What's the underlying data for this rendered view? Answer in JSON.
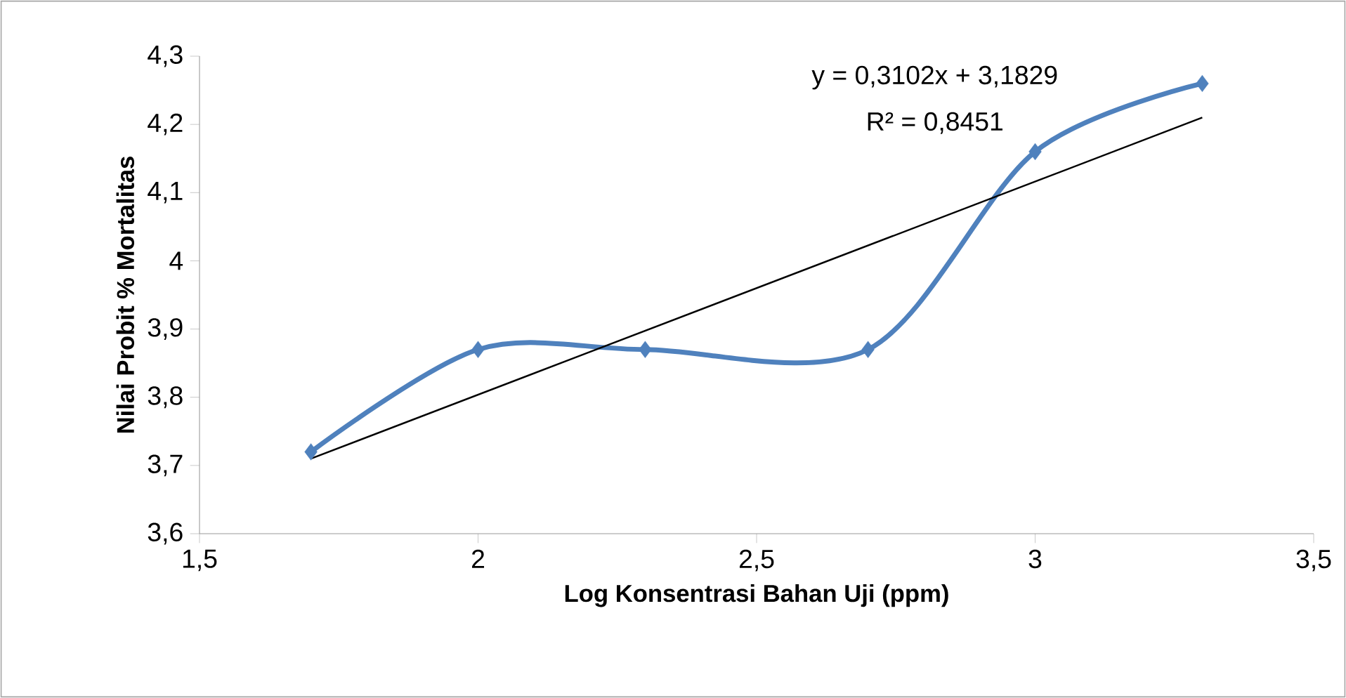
{
  "chart_data": {
    "type": "line",
    "xlabel": "Log Konsentrasi Bahan Uji (ppm)",
    "ylabel": "Nilai Probit % Mortalitas",
    "series": [
      {
        "x": [
          1.7,
          2.0,
          2.3,
          2.7,
          3.0,
          3.3
        ],
        "values": [
          3.72,
          3.87,
          3.87,
          3.87,
          4.16,
          4.26
        ],
        "color": "#4f81bd",
        "marker": "diamond"
      },
      {
        "x": [
          1.7,
          3.3
        ],
        "values": [
          3.71,
          4.21
        ],
        "color": "#000000",
        "marker": "none"
      }
    ],
    "annotations": [
      "y = 0,3102x + 3,1829",
      "R² = 0,8451"
    ],
    "xlim": [
      1.5,
      3.5
    ],
    "xticks": [
      {
        "value": 1.5,
        "label": "1,5"
      },
      2,
      {
        "value": 2.5,
        "label": "2,5"
      },
      3,
      {
        "value": 3.5,
        "label": "3,5"
      }
    ],
    "ylim": [
      3.6,
      4.3
    ],
    "yticks": [
      {
        "value": 3.6,
        "label": "3,6"
      },
      {
        "value": 3.7,
        "label": "3,7"
      },
      {
        "value": 3.8,
        "label": "3,8"
      },
      {
        "value": 3.9,
        "label": "3,9"
      },
      4,
      {
        "value": 4.1,
        "label": "4,1"
      },
      {
        "value": 4.2,
        "label": "4,2"
      },
      {
        "value": 4.3,
        "label": "4,3"
      }
    ],
    "grid": false
  }
}
